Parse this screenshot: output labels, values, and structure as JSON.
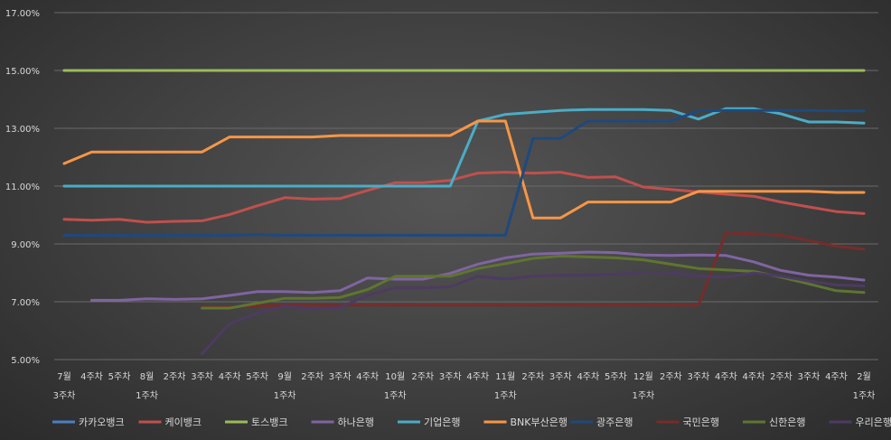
{
  "chart_data": {
    "type": "line",
    "title": "",
    "xlabel": "",
    "ylabel": "",
    "ylim": [
      5,
      17
    ],
    "yticks": [
      5,
      7,
      9,
      11,
      13,
      15,
      17
    ],
    "ytick_labels": [
      "5.00%",
      "7.00%",
      "9.00%",
      "11.00%",
      "13.00%",
      "15.00%",
      "17.00%"
    ],
    "grid": true,
    "legend_position": "bottom",
    "x_tick_labels": [
      [
        "7월",
        "3주차"
      ],
      [
        "4주차",
        ""
      ],
      [
        "5주차",
        ""
      ],
      [
        "8월",
        "1주차"
      ],
      [
        "2주차",
        ""
      ],
      [
        "3주차",
        ""
      ],
      [
        "4주차",
        ""
      ],
      [
        "5주차",
        ""
      ],
      [
        "9월",
        "1주차"
      ],
      [
        "2주차",
        ""
      ],
      [
        "3주차",
        ""
      ],
      [
        "4주차",
        ""
      ],
      [
        "10월",
        "1주차"
      ],
      [
        "2주차",
        ""
      ],
      [
        "3주차",
        ""
      ],
      [
        "4주차",
        ""
      ],
      [
        "11월",
        "1주차"
      ],
      [
        "2주차",
        ""
      ],
      [
        "3주차",
        ""
      ],
      [
        "4주차",
        ""
      ],
      [
        "5주차",
        ""
      ],
      [
        "12월",
        "1주차"
      ],
      [
        "2주차",
        ""
      ],
      [
        "3주차",
        ""
      ],
      [
        "4주차",
        ""
      ],
      [
        "4주차",
        ""
      ],
      [
        "2주차",
        ""
      ],
      [
        "3주차",
        ""
      ],
      [
        "4주차",
        ""
      ],
      [
        "2월",
        "1주차"
      ]
    ],
    "series": [
      {
        "name": "카카오뱅크",
        "color": "#4a7fc1",
        "values": [
          15,
          15,
          null,
          null,
          null,
          null,
          null,
          null,
          null,
          null,
          null,
          null,
          null,
          null,
          null,
          null,
          null,
          null,
          null,
          null,
          null,
          null,
          null,
          null,
          null,
          null,
          null,
          null,
          null,
          null
        ]
      },
      {
        "name": "케이뱅크",
        "color": "#c0504d",
        "values": [
          9.85,
          9.82,
          9.85,
          9.75,
          9.78,
          9.8,
          10.02,
          10.32,
          10.6,
          10.55,
          10.57,
          10.85,
          11.12,
          11.12,
          11.2,
          11.45,
          11.48,
          11.45,
          11.48,
          11.3,
          11.32,
          10.97,
          10.88,
          10.8,
          10.72,
          10.65,
          10.45,
          10.28,
          10.12,
          10.05
        ]
      },
      {
        "name": "토스뱅크",
        "color": "#9bbb59",
        "values": [
          15,
          15,
          15,
          15,
          15,
          15,
          15,
          15,
          15,
          15,
          15,
          15,
          15,
          15,
          15,
          15,
          15,
          15,
          15,
          15,
          15,
          15,
          15,
          15,
          15,
          15,
          15,
          15,
          15,
          15
        ]
      },
      {
        "name": "하나은행",
        "color": "#8064a2",
        "values": [
          null,
          7.05,
          7.05,
          7.1,
          7.08,
          7.1,
          7.22,
          7.35,
          7.35,
          7.32,
          7.38,
          7.82,
          7.78,
          7.78,
          7.98,
          8.3,
          8.52,
          8.65,
          8.68,
          8.72,
          8.7,
          8.62,
          8.6,
          8.62,
          8.6,
          8.38,
          8.08,
          7.92,
          7.85,
          7.75
        ]
      },
      {
        "name": "기업은행",
        "color": "#4bacc6",
        "values": [
          11,
          11,
          11,
          11,
          11,
          11,
          11,
          11,
          11,
          11,
          11,
          11,
          11,
          11,
          11,
          13.25,
          13.48,
          13.55,
          13.62,
          13.65,
          13.65,
          13.65,
          13.62,
          13.32,
          13.68,
          13.68,
          13.5,
          13.22,
          13.22,
          13.18
        ]
      },
      {
        "name": "BNK부산은행",
        "color": "#f79646",
        "values": [
          11.78,
          12.18,
          12.18,
          12.18,
          12.18,
          12.18,
          12.7,
          12.7,
          12.7,
          12.7,
          12.75,
          12.75,
          12.75,
          12.75,
          12.75,
          13.25,
          13.25,
          9.9,
          9.9,
          10.45,
          10.45,
          10.45,
          10.45,
          10.82,
          10.82,
          10.82,
          10.82,
          10.82,
          10.78,
          10.78
        ]
      },
      {
        "name": "광주은행",
        "color": "#1f497d",
        "values": [
          9.3,
          9.3,
          9.3,
          9.3,
          9.3,
          9.3,
          9.3,
          9.32,
          9.3,
          9.3,
          9.3,
          9.3,
          9.3,
          9.3,
          9.3,
          9.3,
          9.3,
          12.65,
          12.65,
          13.25,
          13.25,
          13.25,
          13.25,
          13.6,
          13.62,
          13.62,
          13.62,
          13.62,
          13.6,
          13.6
        ]
      },
      {
        "name": "국민은행",
        "color": "#772c2a",
        "values": [
          null,
          null,
          null,
          null,
          null,
          6.82,
          6.82,
          6.85,
          6.88,
          6.88,
          6.88,
          6.88,
          6.88,
          6.88,
          6.88,
          6.88,
          6.88,
          6.88,
          6.88,
          6.88,
          6.88,
          6.88,
          6.88,
          6.88,
          9.38,
          9.35,
          9.3,
          9.12,
          8.92,
          8.82
        ]
      },
      {
        "name": "신한은행",
        "color": "#5f7530",
        "values": [
          null,
          null,
          null,
          null,
          null,
          6.78,
          6.78,
          6.95,
          7.12,
          7.12,
          7.15,
          7.42,
          7.88,
          7.88,
          7.88,
          8.15,
          8.32,
          8.5,
          8.58,
          8.55,
          8.52,
          8.45,
          8.3,
          8.15,
          8.1,
          8.05,
          7.85,
          7.62,
          7.38,
          7.32
        ]
      },
      {
        "name": "우리은행",
        "color": "#4d3b62",
        "values": [
          null,
          null,
          null,
          null,
          null,
          5.2,
          6.25,
          6.6,
          6.85,
          6.75,
          6.8,
          7.22,
          7.48,
          7.48,
          7.52,
          7.88,
          7.78,
          7.88,
          7.92,
          7.92,
          7.95,
          8.02,
          8.0,
          7.88,
          7.85,
          8.0,
          7.88,
          7.72,
          7.58,
          7.55
        ]
      }
    ]
  }
}
